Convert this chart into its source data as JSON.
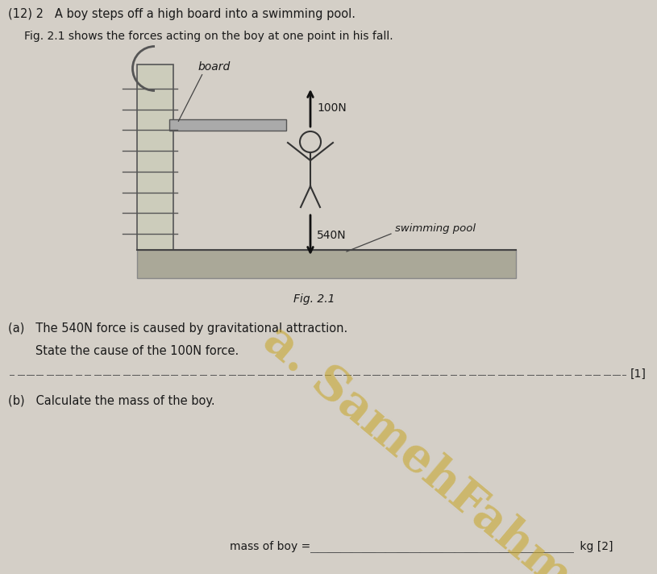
{
  "bg_color": "#d4cfc7",
  "title_line1": "(12) 2   A boy steps off a high board into a swimming pool.",
  "title_line2": "Fig. 2.1 shows the forces acting on the boy at one point in his fall.",
  "fig_label": "Fig. 2.1",
  "board_label": "board",
  "force_up_label": "100N",
  "force_down_label": "540N",
  "pool_label": "swimming pool",
  "question_a_intro": "(a)   The 540N force is caused by gravitational attraction.",
  "question_a_state": "   State the cause of the 100N force.",
  "question_a_mark": "[1]",
  "question_b": "(b)   Calculate the mass of the boy.",
  "answer_b_label": "mass of boy = ",
  "answer_b_dots": ".................................................",
  "answer_b_unit": " kg [2]",
  "watermark_line1": "a. SamehFahmy",
  "text_color": "#1a1a1a",
  "watermark_color": "#c8a830",
  "ladder_color": "#555555",
  "pool_fill": "#aaa898",
  "arrow_color": "#111111"
}
